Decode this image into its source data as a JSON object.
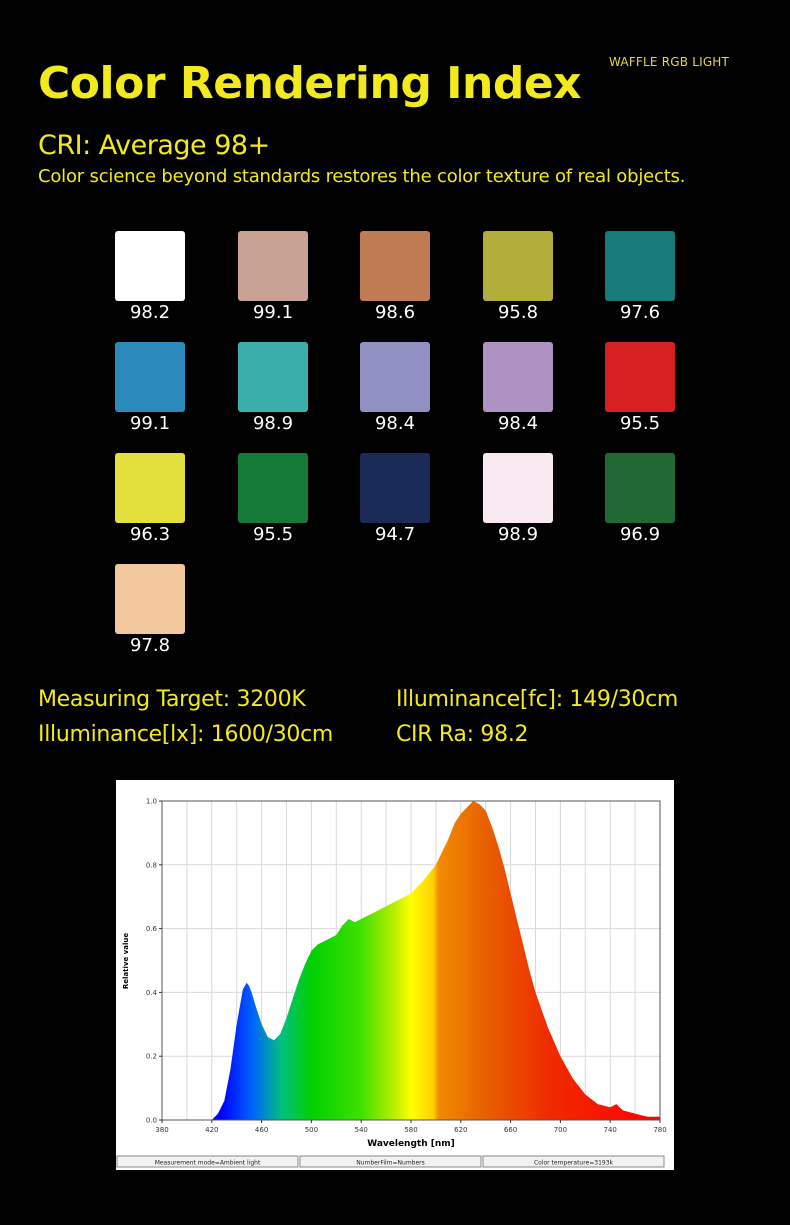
{
  "brand": "WAFFLE RGB LIGHT",
  "title": "Color Rendering Index",
  "cri_line": "CRI: Average 98+",
  "subtitle": "Color science beyond standards restores the color texture of real objects.",
  "swatches": [
    {
      "color": "#ffffff",
      "value": "98.2"
    },
    {
      "color": "#c8a393",
      "value": "99.1"
    },
    {
      "color": "#bf7c52",
      "value": "98.6"
    },
    {
      "color": "#b3ae3c",
      "value": "95.8"
    },
    {
      "color": "#177b7a",
      "value": "97.6"
    },
    {
      "color": "#2b8ab9",
      "value": "99.1"
    },
    {
      "color": "#39aeaa",
      "value": "98.9"
    },
    {
      "color": "#9190c2",
      "value": "98.4"
    },
    {
      "color": "#ae93c2",
      "value": "98.4"
    },
    {
      "color": "#d62022",
      "value": "95.5"
    },
    {
      "color": "#e3e03d",
      "value": "96.3"
    },
    {
      "color": "#157a37",
      "value": "95.5"
    },
    {
      "color": "#1b2b58",
      "value": "94.7"
    },
    {
      "color": "#f9eaf1",
      "value": "98.9"
    },
    {
      "color": "#206935",
      "value": "96.9"
    },
    {
      "color": "#f1c79b",
      "value": "97.8"
    }
  ],
  "specs": {
    "measuring_target": "Measuring Target: 3200K",
    "illuminance_fc": "Illuminance[fc]: 149/30cm",
    "illuminance_lx": "Illuminance[lx]: 1600/30cm",
    "cir_ra": "CIR Ra: 98.2"
  },
  "chart_data": {
    "type": "area",
    "xlabel": "Wavelength [nm]",
    "ylabel": "Relative value",
    "xlim": [
      380,
      780
    ],
    "ylim": [
      0,
      1.0
    ],
    "x_ticks": [
      "380",
      "420",
      "460",
      "500",
      "540",
      "580",
      "620",
      "660",
      "700",
      "740",
      "780"
    ],
    "y_ticks": [
      "0.0",
      "0.2",
      "0.4",
      "0.6",
      "0.8",
      "1.0"
    ],
    "grid": true,
    "series": [
      {
        "x": [
          380,
          420,
          425,
          430,
          435,
          440,
          445,
          448,
          450,
          452,
          455,
          460,
          465,
          470,
          475,
          480,
          485,
          490,
          495,
          500,
          505,
          510,
          515,
          520,
          525,
          530,
          535,
          540,
          545,
          550,
          560,
          570,
          580,
          590,
          600,
          605,
          610,
          615,
          620,
          625,
          630,
          635,
          640,
          645,
          650,
          655,
          660,
          665,
          670,
          675,
          680,
          690,
          700,
          710,
          720,
          730,
          740,
          745,
          750,
          760,
          770,
          780
        ],
        "y": [
          0.0,
          0.0,
          0.02,
          0.06,
          0.16,
          0.3,
          0.41,
          0.43,
          0.42,
          0.4,
          0.36,
          0.3,
          0.26,
          0.25,
          0.27,
          0.32,
          0.38,
          0.44,
          0.49,
          0.53,
          0.55,
          0.56,
          0.57,
          0.58,
          0.61,
          0.63,
          0.62,
          0.63,
          0.64,
          0.65,
          0.67,
          0.69,
          0.71,
          0.75,
          0.8,
          0.84,
          0.88,
          0.93,
          0.96,
          0.98,
          1.0,
          0.99,
          0.97,
          0.92,
          0.86,
          0.79,
          0.71,
          0.63,
          0.55,
          0.47,
          0.4,
          0.29,
          0.2,
          0.13,
          0.08,
          0.05,
          0.04,
          0.05,
          0.03,
          0.02,
          0.01,
          0.01
        ]
      }
    ],
    "footer": [
      "Measurement mode=Ambient light",
      "NumberFilm=Numbers",
      "Color temperature=3193k"
    ]
  }
}
